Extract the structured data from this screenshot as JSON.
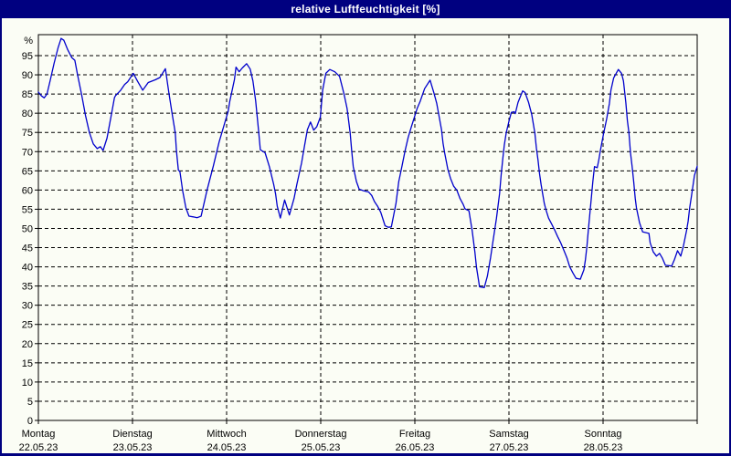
{
  "window": {
    "title": "relative Luftfeuchtigkeit [%]",
    "title_bar_color": "#000080",
    "border_color": "#000080",
    "background_color": "#FBFDF5"
  },
  "chart_data": {
    "type": "line",
    "title": "relative Luftfeuchtigkeit [%]",
    "y_unit": "%",
    "ylim": [
      0,
      100
    ],
    "y_tick_step": 5,
    "y_ticks": [
      0,
      5,
      10,
      15,
      20,
      25,
      30,
      35,
      40,
      45,
      50,
      55,
      60,
      65,
      70,
      75,
      80,
      85,
      90,
      95
    ],
    "grid": "dashed",
    "legend_position": "none",
    "line_color": "#0000CC",
    "x_axis": {
      "unit": "days",
      "hours_per_day": 24,
      "days": [
        {
          "name": "Montag",
          "date": "22.05.23"
        },
        {
          "name": "Dienstag",
          "date": "23.05.23"
        },
        {
          "name": "Mittwoch",
          "date": "24.05.23"
        },
        {
          "name": "Donnerstag",
          "date": "25.05.23"
        },
        {
          "name": "Freitag",
          "date": "26.05.23"
        },
        {
          "name": "Samstag",
          "date": "27.05.23"
        },
        {
          "name": "Sonntag",
          "date": "28.05.23"
        }
      ]
    },
    "series": [
      {
        "name": "relative Luftfeuchtigkeit [%]",
        "unit": "%",
        "x_unit": "hours_since_monday_00",
        "points": [
          [
            0,
            85.5
          ],
          [
            0.8,
            84.5
          ],
          [
            1.5,
            84
          ],
          [
            2.2,
            85
          ],
          [
            3,
            88.5
          ],
          [
            4,
            93
          ],
          [
            5,
            97
          ],
          [
            5.8,
            99.5
          ],
          [
            6.5,
            99
          ],
          [
            7.5,
            96.5
          ],
          [
            8.5,
            94.5
          ],
          [
            9.3,
            93.8
          ],
          [
            10,
            90
          ],
          [
            11,
            85
          ],
          [
            12,
            79.5
          ],
          [
            13,
            75
          ],
          [
            14,
            72
          ],
          [
            15,
            70.8
          ],
          [
            15.8,
            71.3
          ],
          [
            16.5,
            70.3
          ],
          [
            17.5,
            73.5
          ],
          [
            18.5,
            79
          ],
          [
            19.4,
            84.1
          ],
          [
            19.7,
            84.6
          ],
          [
            21,
            86
          ],
          [
            22,
            87.5
          ],
          [
            22.8,
            88.2
          ],
          [
            24.2,
            90.4
          ],
          [
            25.3,
            88.3
          ],
          [
            26.6,
            86
          ],
          [
            28,
            88
          ],
          [
            29.8,
            88.7
          ],
          [
            31,
            89.3
          ],
          [
            32.4,
            91.6
          ],
          [
            33.3,
            85.2
          ],
          [
            34.1,
            80
          ],
          [
            34.9,
            74.9
          ],
          [
            35.2,
            70.2
          ],
          [
            35.7,
            65.2
          ],
          [
            36.1,
            64.8
          ],
          [
            36.8,
            59.8
          ],
          [
            37.6,
            55.4
          ],
          [
            38.4,
            53.2
          ],
          [
            39.5,
            53
          ],
          [
            40.5,
            52.8
          ],
          [
            41.5,
            53.2
          ],
          [
            43,
            59.9
          ],
          [
            44.6,
            66.2
          ],
          [
            46.1,
            72.5
          ],
          [
            47.7,
            78.1
          ],
          [
            48.4,
            80.5
          ],
          [
            48.8,
            83
          ],
          [
            50,
            88.8
          ],
          [
            50.4,
            92
          ],
          [
            51.2,
            90.8
          ],
          [
            52,
            91.8
          ],
          [
            53.1,
            92.9
          ],
          [
            54,
            91.5
          ],
          [
            54.7,
            88.4
          ],
          [
            55.4,
            83.2
          ],
          [
            56.2,
            74.9
          ],
          [
            56.6,
            70.5
          ],
          [
            57.8,
            69.7
          ],
          [
            58.9,
            66.1
          ],
          [
            60,
            61.5
          ],
          [
            60.5,
            59
          ],
          [
            60.9,
            55.8
          ],
          [
            61.7,
            52.7
          ],
          [
            62.8,
            57.4
          ],
          [
            64,
            53.5
          ],
          [
            65.2,
            57.8
          ],
          [
            65.9,
            61.4
          ],
          [
            67.1,
            67
          ],
          [
            67.9,
            71.7
          ],
          [
            68.6,
            75.7
          ],
          [
            69.4,
            77.7
          ],
          [
            70.2,
            75.6
          ],
          [
            71,
            76.5
          ],
          [
            71.9,
            79
          ],
          [
            72.5,
            86
          ],
          [
            73.3,
            90.4
          ],
          [
            74.3,
            91.4
          ],
          [
            75.6,
            90.8
          ],
          [
            76.8,
            89.6
          ],
          [
            77.9,
            85.2
          ],
          [
            78.7,
            81.3
          ],
          [
            79.5,
            74.9
          ],
          [
            79.9,
            70.2
          ],
          [
            80.3,
            66.1
          ],
          [
            81.1,
            62.2
          ],
          [
            81.8,
            60.2
          ],
          [
            83,
            59.8
          ],
          [
            84.2,
            59.5
          ],
          [
            85,
            58.6
          ],
          [
            85.7,
            57
          ],
          [
            86.5,
            55.8
          ],
          [
            87.3,
            54.2
          ],
          [
            88.4,
            50.7
          ],
          [
            89.2,
            50.3
          ],
          [
            90,
            50.4
          ],
          [
            91.2,
            56.6
          ],
          [
            91.9,
            62.2
          ],
          [
            92.7,
            66.1
          ],
          [
            93.5,
            70.2
          ],
          [
            94.3,
            73.7
          ],
          [
            95.1,
            76.4
          ],
          [
            96.6,
            81.3
          ],
          [
            97.4,
            83.2
          ],
          [
            98.5,
            86.4
          ],
          [
            99.9,
            88.6
          ],
          [
            100.9,
            85.2
          ],
          [
            101.6,
            82.5
          ],
          [
            102.8,
            75.7
          ],
          [
            103.2,
            72.1
          ],
          [
            103.6,
            69.7
          ],
          [
            104.4,
            65.4
          ],
          [
            105.1,
            63
          ],
          [
            105.9,
            61
          ],
          [
            106.7,
            60
          ],
          [
            107.5,
            57.8
          ],
          [
            108.3,
            56.3
          ],
          [
            108.8,
            55.1
          ],
          [
            109.8,
            54.6
          ],
          [
            110.6,
            49.5
          ],
          [
            111.3,
            43.9
          ],
          [
            111.7,
            40
          ],
          [
            112.5,
            34.8
          ],
          [
            113.7,
            34.6
          ],
          [
            114.5,
            37.6
          ],
          [
            115.3,
            42.3
          ],
          [
            116,
            47.1
          ],
          [
            116.8,
            52.6
          ],
          [
            117.6,
            59
          ],
          [
            118,
            63.8
          ],
          [
            118.4,
            67.8
          ],
          [
            118.8,
            71.7
          ],
          [
            119.3,
            74.9
          ],
          [
            120,
            77.9
          ],
          [
            120.6,
            80.2
          ],
          [
            121.3,
            80.4
          ],
          [
            121.6,
            79.9
          ],
          [
            122.3,
            82.8
          ],
          [
            123.1,
            84.8
          ],
          [
            123.5,
            85.8
          ],
          [
            124.1,
            85.4
          ],
          [
            125,
            82.8
          ],
          [
            125.8,
            79.7
          ],
          [
            126.6,
            74.9
          ],
          [
            127,
            71
          ],
          [
            127.4,
            67.8
          ],
          [
            127.8,
            64.2
          ],
          [
            128.2,
            61.4
          ],
          [
            128.6,
            59
          ],
          [
            129,
            56.6
          ],
          [
            129.4,
            55
          ],
          [
            130.1,
            52.7
          ],
          [
            130.9,
            51.1
          ],
          [
            131.7,
            49.5
          ],
          [
            132.4,
            47.9
          ],
          [
            133.2,
            46.3
          ],
          [
            134,
            44.3
          ],
          [
            134.8,
            42.3
          ],
          [
            135.5,
            40
          ],
          [
            136.3,
            38.4
          ],
          [
            137.1,
            37
          ],
          [
            138.2,
            36.8
          ],
          [
            139.1,
            39.2
          ],
          [
            139.5,
            41.9
          ],
          [
            139.9,
            45.5
          ],
          [
            140.2,
            49.1
          ],
          [
            140.6,
            53.5
          ],
          [
            141,
            57.8
          ],
          [
            141.4,
            62.2
          ],
          [
            141.8,
            66.1
          ],
          [
            142.5,
            65.8
          ],
          [
            142.9,
            67.8
          ],
          [
            143.3,
            70.2
          ],
          [
            144.1,
            74.5
          ],
          [
            144.9,
            78.5
          ],
          [
            145.6,
            82.5
          ],
          [
            146,
            86
          ],
          [
            146.7,
            89.2
          ],
          [
            147.9,
            91.4
          ],
          [
            148.7,
            90.4
          ],
          [
            149.2,
            88.4
          ],
          [
            149.8,
            82.8
          ],
          [
            150.2,
            78.1
          ],
          [
            150.6,
            74.9
          ],
          [
            151,
            69.7
          ],
          [
            151.4,
            66.1
          ],
          [
            151.8,
            62.2
          ],
          [
            152.2,
            57.8
          ],
          [
            152.5,
            55.4
          ],
          [
            153.3,
            51.5
          ],
          [
            154.1,
            49.1
          ],
          [
            155.7,
            48.7
          ],
          [
            156,
            46.3
          ],
          [
            156.8,
            43.9
          ],
          [
            157.6,
            42.8
          ],
          [
            158.4,
            43.5
          ],
          [
            159.1,
            42.3
          ],
          [
            159.9,
            40.4
          ],
          [
            161.5,
            40.2
          ],
          [
            162.2,
            41.9
          ],
          [
            163,
            44.2
          ],
          [
            163.8,
            42.8
          ],
          [
            164.5,
            45.5
          ],
          [
            165.3,
            49.5
          ],
          [
            165.7,
            51.9
          ],
          [
            166.1,
            55.4
          ],
          [
            166.5,
            58.2
          ],
          [
            166.9,
            61
          ],
          [
            167.3,
            63.8
          ],
          [
            168,
            66.2
          ]
        ]
      }
    ]
  }
}
